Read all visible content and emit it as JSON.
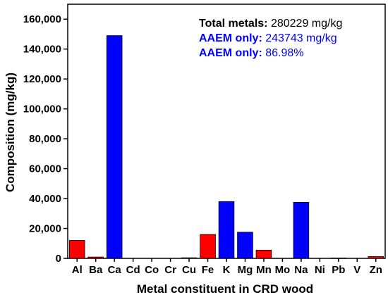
{
  "chart_data": {
    "type": "bar",
    "title": "",
    "xlabel": "Metal constituent in CRD wood",
    "ylabel": "Composition (mg/kg)",
    "ylim": [
      0,
      170000
    ],
    "yticks": [
      0,
      20000,
      40000,
      60000,
      80000,
      100000,
      120000,
      140000,
      160000
    ],
    "ytick_labels": [
      "0",
      "20,000",
      "40,000",
      "60,000",
      "80,000",
      "100,000",
      "120,000",
      "140,000",
      "160,000"
    ],
    "grid": false,
    "categories": [
      "Al",
      "Ba",
      "Ca",
      "Cd",
      "Co",
      "Cr",
      "Cu",
      "Fe",
      "K",
      "Mg",
      "Mn",
      "Mo",
      "Na",
      "Ni",
      "Pb",
      "V",
      "Zn"
    ],
    "values": [
      12000,
      900,
      149000,
      0,
      0,
      0,
      400,
      16000,
      38000,
      17500,
      5500,
      0,
      37500,
      0,
      300,
      0,
      1200
    ],
    "groups": [
      "other",
      "other",
      "aaem",
      "other",
      "other",
      "other",
      "other",
      "other",
      "aaem",
      "aaem",
      "other",
      "other",
      "aaem",
      "other",
      "other",
      "other",
      "other"
    ],
    "colors": {
      "aaem": "#0000ff",
      "other": "#ff0000",
      "axis": "#000000",
      "annotation_primary": "#000000",
      "annotation_secondary": "#0000ff"
    },
    "annotations": [
      {
        "label": "Total metals:",
        "value": "280229 mg/kg",
        "color": "#000000"
      },
      {
        "label": "AAEM only:",
        "value": "243743 mg/kg",
        "color": "#0000ff"
      },
      {
        "label": "AAEM only:",
        "value": "86.98%",
        "color": "#0000ff"
      }
    ]
  }
}
